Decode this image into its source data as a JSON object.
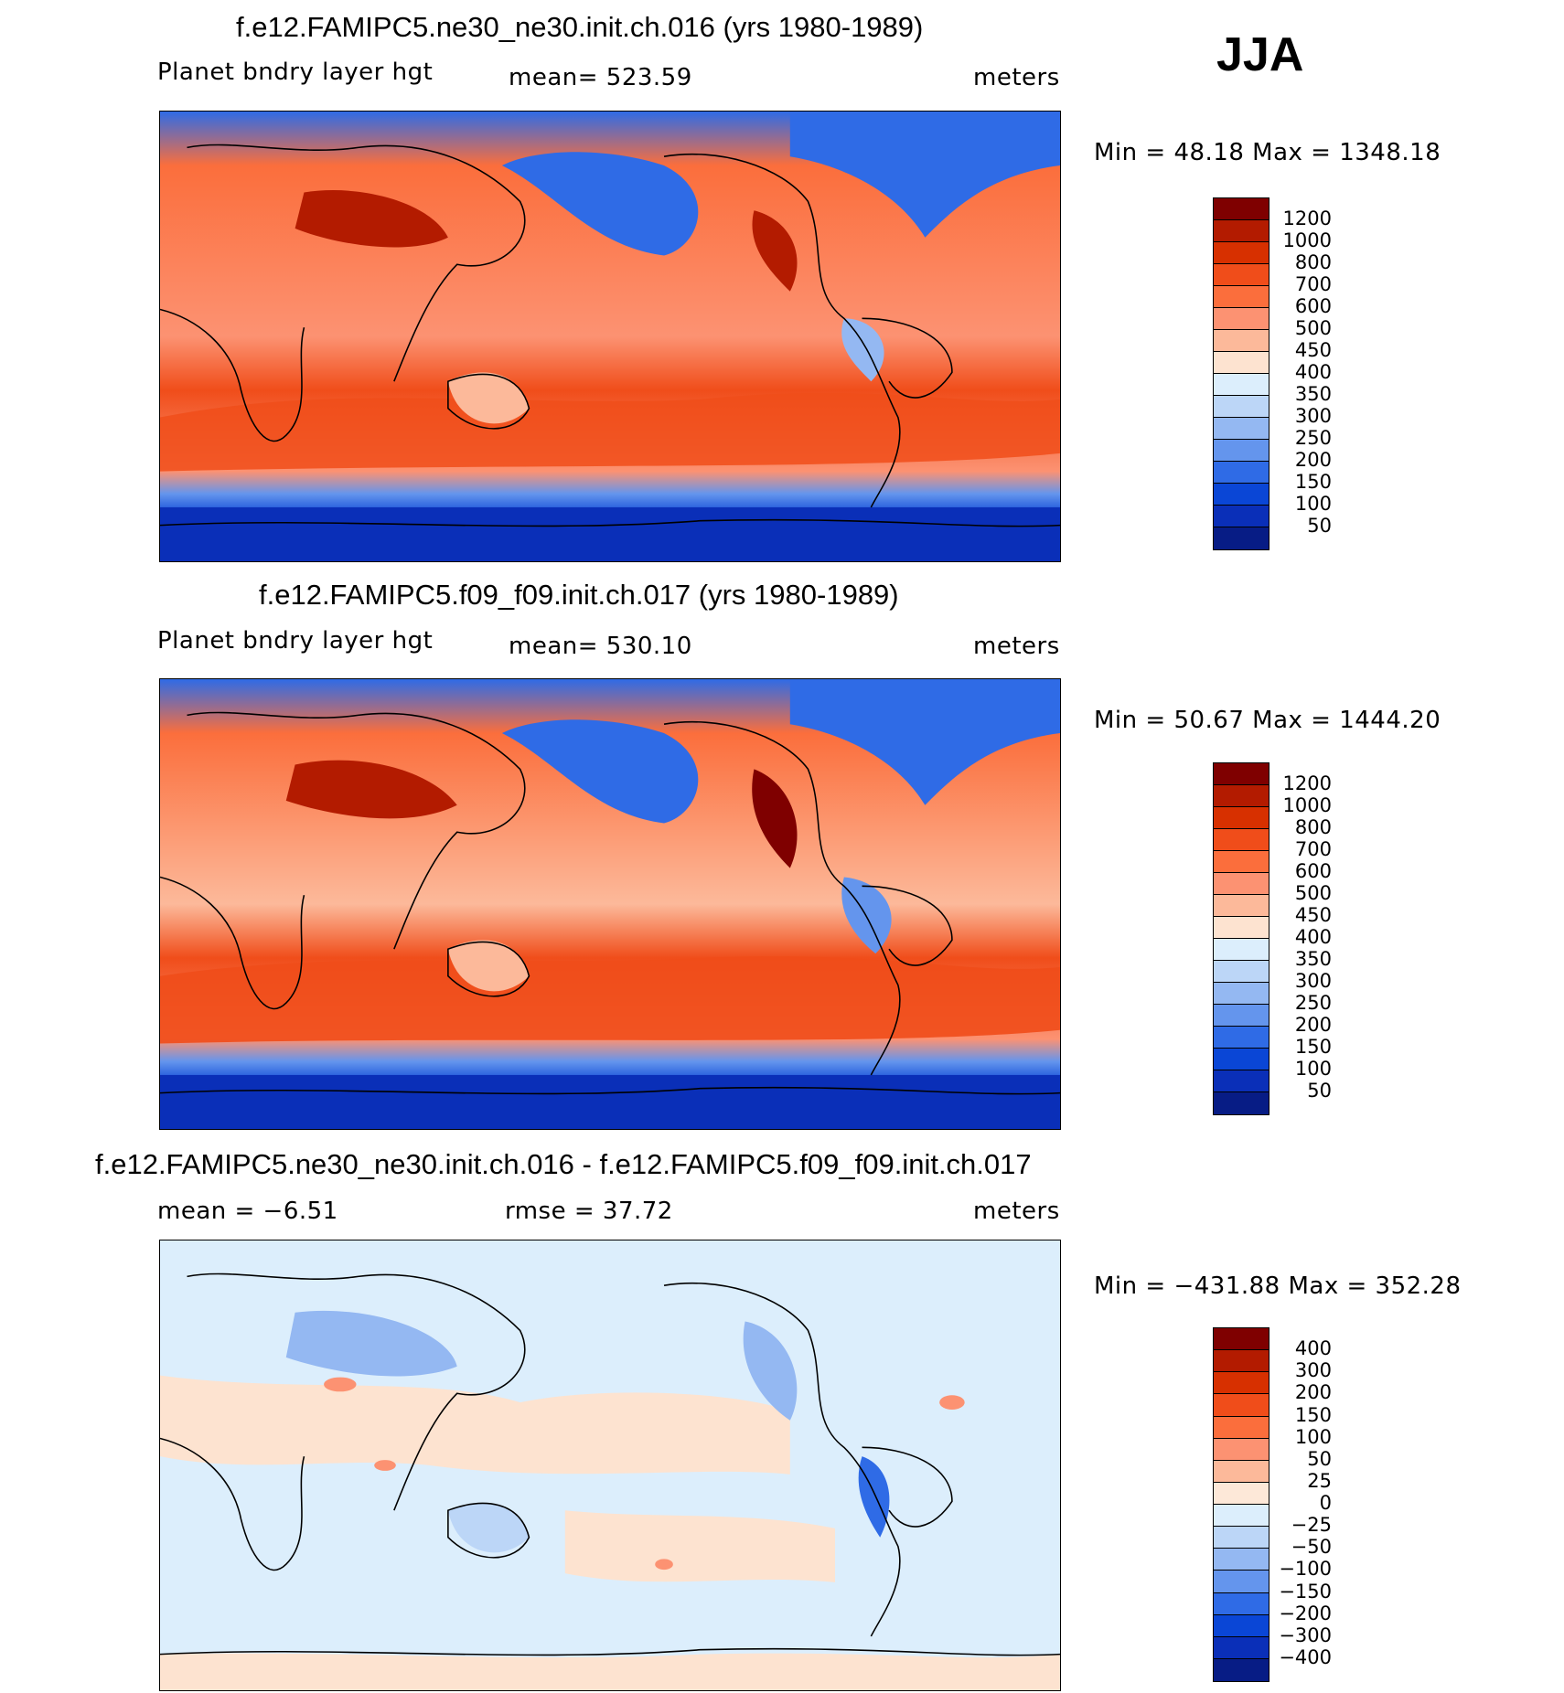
{
  "season": "JJA",
  "units": "meters",
  "panels": [
    {
      "title": "f.e12.FAMIPC5.ne30_ne30.init.ch.016 (yrs 1980-1989)",
      "variable": "Planet bndry layer hgt",
      "stat": "mean= 523.59",
      "minmax": "Min =   48.18 Max = 1348.18",
      "type": "field"
    },
    {
      "title": "f.e12.FAMIPC5.f09_f09.init.ch.017 (yrs 1980-1989)",
      "variable": "Planet bndry layer hgt",
      "stat": "mean= 530.10",
      "minmax": "Min =   50.67 Max = 1444.20",
      "type": "field"
    },
    {
      "title": "f.e12.FAMIPC5.ne30_ne30.init.ch.016 - f.e12.FAMIPC5.f09_f09.init.ch.017",
      "variable": "mean =   −6.51",
      "stat": "rmse =   37.72",
      "minmax": "Min = −431.88 Max = 352.28",
      "type": "diff"
    }
  ],
  "field_colorbar": {
    "labels": [
      "1200",
      "1000",
      "800",
      "700",
      "600",
      "500",
      "450",
      "400",
      "350",
      "300",
      "250",
      "200",
      "150",
      "100",
      "50"
    ],
    "colors": [
      "#7f0000",
      "#b31b00",
      "#d73000",
      "#f04d1a",
      "#fb6e3c",
      "#fc9272",
      "#fcb99a",
      "#fde3d0",
      "#dceefc",
      "#bcd6f7",
      "#94b8f2",
      "#6495ed",
      "#2f6be6",
      "#0a46d6",
      "#0a2fb8",
      "#071c85"
    ]
  },
  "diff_colorbar": {
    "labels": [
      "400",
      "300",
      "200",
      "150",
      "100",
      "50",
      "25",
      "0",
      "−25",
      "−50",
      "−100",
      "−150",
      "−200",
      "−300",
      "−400"
    ],
    "colors": [
      "#7f0000",
      "#b31b00",
      "#d73000",
      "#f04d1a",
      "#fb6e3c",
      "#fc9272",
      "#fcb99a",
      "#fde8d8",
      "#dceefc",
      "#bcd6f7",
      "#94b8f2",
      "#6495ed",
      "#2f6be6",
      "#0a46d6",
      "#0a2fb8",
      "#071c85"
    ]
  }
}
